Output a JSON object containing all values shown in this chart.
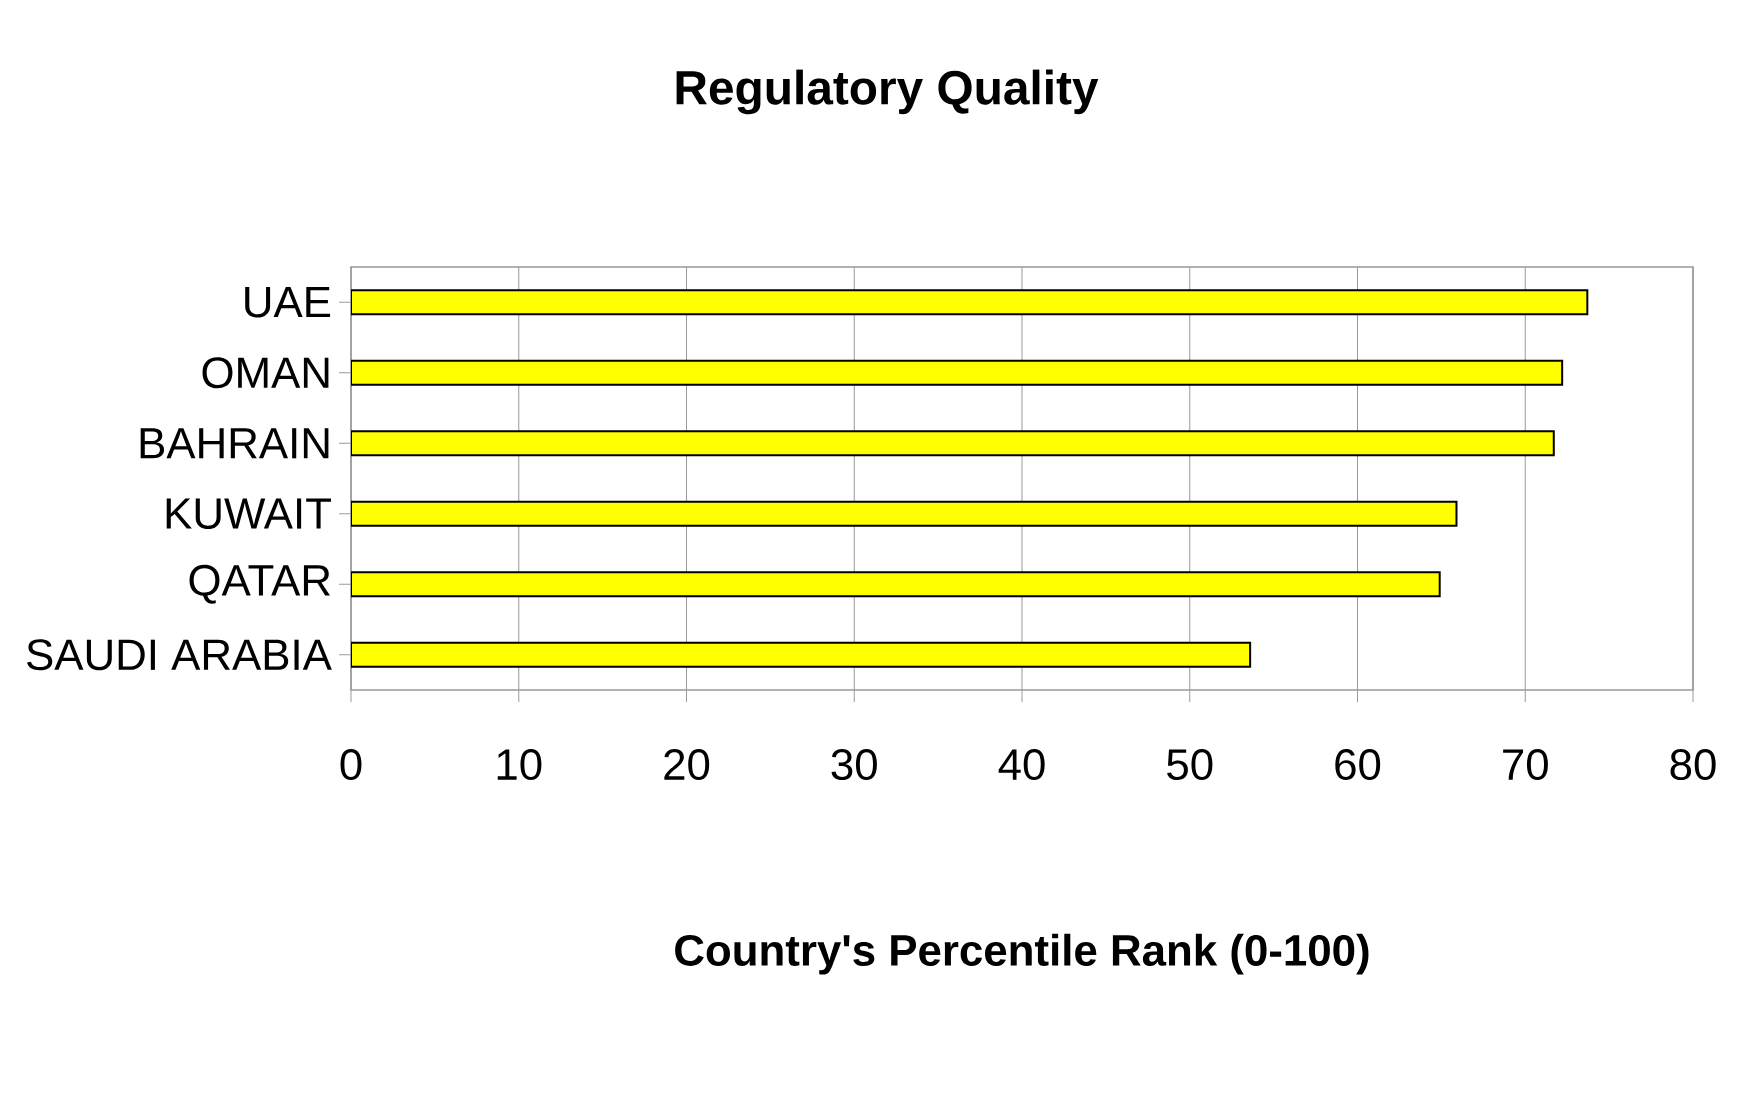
{
  "chart_data": {
    "type": "bar",
    "orientation": "horizontal",
    "title": "Regulatory Quality",
    "xlabel": "Country's Percentile Rank (0-100)",
    "categories": [
      "UAE",
      "OMAN",
      "BAHRAIN",
      "KUWAIT",
      "QATAR",
      "SAUDI ARABIA"
    ],
    "values": [
      73.7,
      72.2,
      71.7,
      65.9,
      64.9,
      53.6
    ],
    "color": "#ffff00",
    "xlim": [
      0,
      80
    ],
    "xticks": [
      0,
      10,
      20,
      30,
      40,
      50,
      60,
      70,
      80
    ],
    "grid": "x"
  }
}
